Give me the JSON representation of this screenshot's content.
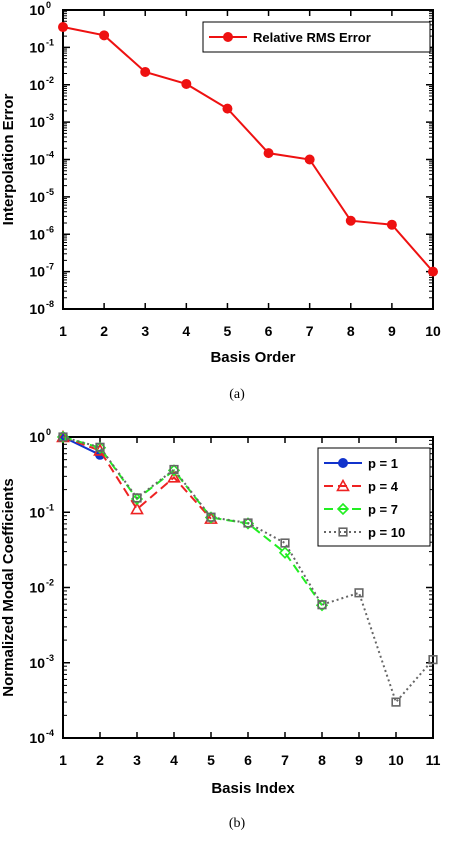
{
  "chart_data": [
    {
      "type": "line",
      "caption": "(a)",
      "xlabel": "Basis Order",
      "ylabel": "Interpolation Error",
      "y_scale": "log",
      "xlim": [
        1,
        10
      ],
      "ylim_exp": [
        -8,
        0
      ],
      "x_ticks": [
        1,
        2,
        3,
        4,
        5,
        6,
        7,
        8,
        9,
        10
      ],
      "y_tick_exp": [
        0,
        -1,
        -2,
        -3,
        -4,
        -5,
        -6,
        -7,
        -8
      ],
      "legend_position": "top-right",
      "series": [
        {
          "name": "Relative RMS Error",
          "color": "#ee1111",
          "marker": "circle",
          "dash": "solid",
          "x": [
            1,
            2,
            3,
            4,
            5,
            6,
            7,
            8,
            9,
            10
          ],
          "y": [
            0.35,
            0.21,
            0.022,
            0.0105,
            0.0023,
            0.000148,
            0.0001,
            2.3e-06,
            1.8e-06,
            1e-07
          ]
        }
      ]
    },
    {
      "type": "line",
      "caption": "(b)",
      "xlabel": "Basis Index",
      "ylabel": "Normalized Modal Coefficients",
      "y_scale": "log",
      "xlim": [
        1,
        11
      ],
      "ylim_exp": [
        -4,
        0
      ],
      "x_ticks": [
        1,
        2,
        3,
        4,
        5,
        6,
        7,
        8,
        9,
        10,
        11
      ],
      "y_tick_exp": [
        0,
        -1,
        -2,
        -3,
        -4
      ],
      "legend_position": "top-right",
      "series": [
        {
          "name": "p = 1",
          "color": "#1133cc",
          "marker": "circle",
          "dash": "solid",
          "x": [
            1,
            2
          ],
          "y": [
            1.0,
            0.58
          ]
        },
        {
          "name": "p = 4",
          "color": "#ee2222",
          "marker": "triangle",
          "dash": "dashed",
          "x": [
            1,
            2,
            3,
            4,
            5
          ],
          "y": [
            1.0,
            0.66,
            0.11,
            0.29,
            0.082
          ]
        },
        {
          "name": "p = 7",
          "color": "#22ee22",
          "marker": "diamond",
          "dash": "dashed",
          "x": [
            1,
            2,
            3,
            4,
            5,
            6,
            7,
            8
          ],
          "y": [
            1.0,
            0.72,
            0.15,
            0.36,
            0.085,
            0.071,
            0.029,
            0.0058
          ]
        },
        {
          "name": "p = 10",
          "color": "#666666",
          "marker": "square",
          "dash": "dotted",
          "x": [
            1,
            2,
            3,
            4,
            5,
            6,
            7,
            8,
            9,
            10,
            11
          ],
          "y": [
            1.0,
            0.73,
            0.155,
            0.37,
            0.086,
            0.072,
            0.039,
            0.0059,
            0.0085,
            0.0003,
            0.0011
          ]
        }
      ]
    }
  ]
}
